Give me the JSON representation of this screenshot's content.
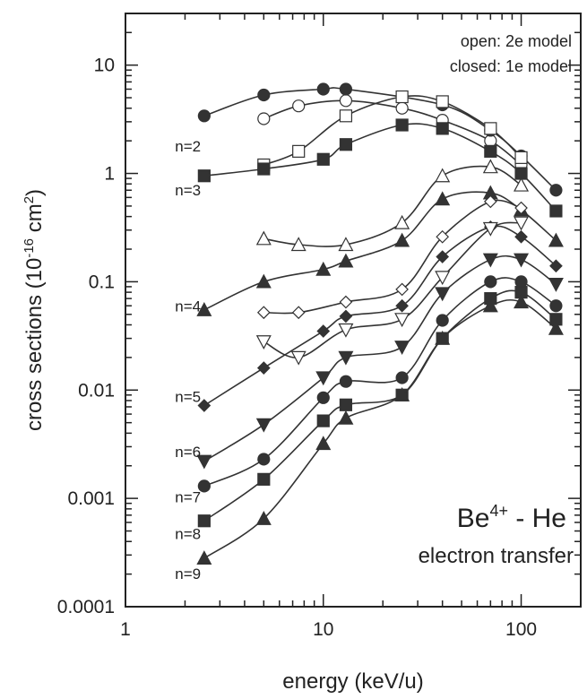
{
  "chart_data": {
    "type": "line",
    "title": "",
    "xlabel": "energy (keV/u)",
    "ylabel": "cross sections (10-16 cm2)",
    "ylabel_parts": {
      "pre": "cross sections (10",
      "exp": "-16",
      "mid": " cm",
      "sup2": "2",
      "post": ")"
    },
    "x_scale": "log",
    "y_scale": "log",
    "xlim": [
      1,
      200
    ],
    "ylim": [
      0.0001,
      30
    ],
    "x_ticks": [
      1,
      10,
      100
    ],
    "x_tick_labels": [
      "1",
      "10",
      "100"
    ],
    "y_ticks": [
      0.0001,
      0.001,
      0.01,
      0.1,
      1,
      10
    ],
    "y_tick_labels": [
      "0.0001",
      "0.001",
      "0.01",
      "0.1",
      "1",
      "10"
    ],
    "grid": false,
    "legend": {
      "placement": "top-right",
      "lines": [
        "open: 2e model",
        "closed: 1e model"
      ]
    },
    "annotations": {
      "system_base": "Be",
      "system_charge": "4+",
      "system_rest": " - He",
      "process": "electron transfer"
    },
    "curve_labels": [
      {
        "text": "n=2",
        "x": 1.78,
        "y": 1.6
      },
      {
        "text": "n=3",
        "x": 1.78,
        "y": 0.63
      },
      {
        "text": "n=4",
        "x": 1.78,
        "y": 0.053
      },
      {
        "text": "n=5",
        "x": 1.78,
        "y": 0.0078
      },
      {
        "text": "n=6",
        "x": 1.78,
        "y": 0.0024
      },
      {
        "text": "n=7",
        "x": 1.78,
        "y": 0.00092
      },
      {
        "text": "n=8",
        "x": 1.78,
        "y": 0.00042
      },
      {
        "text": "n=9",
        "x": 1.78,
        "y": 0.00018
      }
    ],
    "series": [
      {
        "label": "n=2",
        "model": "2e",
        "marker": "circle",
        "filled": false,
        "x": [
          5,
          7.5,
          13,
          25,
          40,
          70,
          100
        ],
        "y": [
          3.2,
          4.2,
          4.7,
          4.0,
          3.1,
          2.0,
          1.2
        ]
      },
      {
        "label": "n=2",
        "model": "1e",
        "marker": "circle",
        "filled": true,
        "x": [
          2.5,
          5,
          10,
          13,
          40,
          70,
          100,
          150
        ],
        "y": [
          3.4,
          5.3,
          6.0,
          6.0,
          4.3,
          2.5,
          1.45,
          0.7
        ]
      },
      {
        "label": "n=3",
        "model": "2e",
        "marker": "square",
        "filled": false,
        "x": [
          5,
          7.5,
          13,
          25,
          40,
          70,
          100
        ],
        "y": [
          1.2,
          1.6,
          3.4,
          5.1,
          4.6,
          2.6,
          1.4
        ]
      },
      {
        "label": "n=3",
        "model": "1e",
        "marker": "square",
        "filled": true,
        "x": [
          2.5,
          5,
          10,
          13,
          25,
          40,
          70,
          100,
          150
        ],
        "y": [
          0.95,
          1.1,
          1.35,
          1.85,
          2.8,
          2.6,
          1.6,
          1.0,
          0.45
        ]
      },
      {
        "label": "n=4",
        "model": "2e",
        "marker": "triangle-up",
        "filled": false,
        "x": [
          5,
          7.5,
          13,
          25,
          40,
          70,
          100
        ],
        "y": [
          0.25,
          0.22,
          0.22,
          0.35,
          0.95,
          1.15,
          0.78
        ]
      },
      {
        "label": "n=4",
        "model": "1e",
        "marker": "triangle-up",
        "filled": true,
        "x": [
          2.5,
          5,
          10,
          13,
          25,
          40,
          70,
          100,
          150
        ],
        "y": [
          0.055,
          0.1,
          0.13,
          0.155,
          0.24,
          0.58,
          0.66,
          0.46,
          0.24
        ]
      },
      {
        "label": "n=5",
        "model": "2e",
        "marker": "diamond",
        "filled": false,
        "x": [
          5,
          7.5,
          13,
          25,
          40,
          70,
          100
        ],
        "y": [
          0.052,
          0.052,
          0.065,
          0.085,
          0.26,
          0.55,
          0.48
        ]
      },
      {
        "label": "n=5",
        "model": "1e",
        "marker": "diamond",
        "filled": true,
        "x": [
          2.5,
          5,
          10,
          13,
          25,
          40,
          70,
          100,
          150
        ],
        "y": [
          0.0072,
          0.016,
          0.035,
          0.048,
          0.06,
          0.17,
          0.32,
          0.26,
          0.14
        ]
      },
      {
        "label": "n=6",
        "model": "2e",
        "marker": "triangle-down",
        "filled": false,
        "x": [
          5,
          7.5,
          13,
          25,
          40,
          70,
          100
        ],
        "y": [
          0.028,
          0.02,
          0.036,
          0.045,
          0.11,
          0.31,
          0.35
        ]
      },
      {
        "label": "n=6",
        "model": "1e",
        "marker": "triangle-down",
        "filled": true,
        "x": [
          2.5,
          5,
          10,
          13,
          25,
          40,
          70,
          100,
          150
        ],
        "y": [
          0.0022,
          0.0048,
          0.013,
          0.02,
          0.025,
          0.078,
          0.16,
          0.16,
          0.095
        ]
      },
      {
        "label": "n=7",
        "model": "1e",
        "marker": "circle",
        "filled": true,
        "x": [
          2.5,
          5,
          10,
          13,
          25,
          40,
          70,
          100,
          150
        ],
        "y": [
          0.0013,
          0.0023,
          0.0085,
          0.012,
          0.013,
          0.044,
          0.1,
          0.1,
          0.06
        ]
      },
      {
        "label": "n=8",
        "model": "1e",
        "marker": "square",
        "filled": true,
        "x": [
          2.5,
          5,
          10,
          13,
          25,
          40,
          70,
          100,
          150
        ],
        "y": [
          0.00062,
          0.0015,
          0.0052,
          0.0073,
          0.009,
          0.03,
          0.07,
          0.08,
          0.045
        ]
      },
      {
        "label": "n=9",
        "model": "1e",
        "marker": "triangle-up",
        "filled": true,
        "x": [
          2.5,
          5,
          10,
          13,
          25,
          40,
          70,
          100,
          150
        ],
        "y": [
          0.00028,
          0.00065,
          0.0032,
          0.0055,
          0.009,
          0.03,
          0.06,
          0.065,
          0.037
        ]
      }
    ]
  }
}
